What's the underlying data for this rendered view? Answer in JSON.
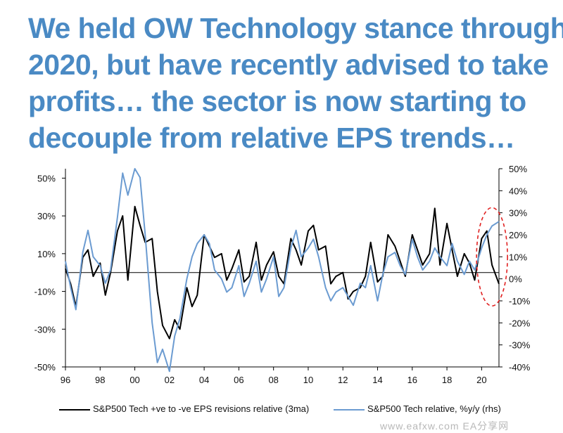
{
  "title_lines": [
    "We held OW Technology stance through",
    "2020, but have recently advised to take",
    "profits… the sector is now starting to",
    "decouple from relative EPS trends…"
  ],
  "watermark": "www.eafxw.com  EA分享网",
  "colors": {
    "title": "#4a8ac4",
    "series1": "#000000",
    "series2": "#6b9bd1",
    "annotation": "#e02020"
  },
  "chart_data": {
    "type": "line",
    "title": "",
    "x_ticks": [
      "96",
      "98",
      "00",
      "02",
      "04",
      "06",
      "08",
      "10",
      "12",
      "14",
      "16",
      "18",
      "20"
    ],
    "xlim": [
      1996,
      2021
    ],
    "y_left": {
      "ticks": [
        "50%",
        "30%",
        "10%",
        "-10%",
        "-30%",
        "-50%"
      ],
      "lim": [
        -50,
        55
      ]
    },
    "y_right": {
      "ticks": [
        "50%",
        "40%",
        "30%",
        "20%",
        "10%",
        "0%",
        "-10%",
        "-20%",
        "-30%",
        "-40%"
      ],
      "lim": [
        -40,
        50
      ]
    },
    "grid": false,
    "legend_position": "bottom",
    "annotation": "red dashed ellipse around 2020–2021",
    "series": [
      {
        "name": "S&P500 Tech +ve to -ve EPS revisions relative (3ma)",
        "axis": "left",
        "color": "#000000",
        "x": [
          1996.0,
          1996.3,
          1996.6,
          1997.0,
          1997.3,
          1997.6,
          1998.0,
          1998.3,
          1998.6,
          1999.0,
          1999.3,
          1999.6,
          2000.0,
          2000.3,
          2000.6,
          2001.0,
          2001.3,
          2001.6,
          2002.0,
          2002.3,
          2002.6,
          2003.0,
          2003.3,
          2003.6,
          2004.0,
          2004.3,
          2004.6,
          2005.0,
          2005.3,
          2005.6,
          2006.0,
          2006.3,
          2006.6,
          2007.0,
          2007.3,
          2007.6,
          2008.0,
          2008.3,
          2008.6,
          2009.0,
          2009.3,
          2009.6,
          2010.0,
          2010.3,
          2010.6,
          2011.0,
          2011.3,
          2011.6,
          2012.0,
          2012.3,
          2012.6,
          2013.0,
          2013.3,
          2013.6,
          2014.0,
          2014.3,
          2014.6,
          2015.0,
          2015.3,
          2015.6,
          2016.0,
          2016.3,
          2016.6,
          2017.0,
          2017.3,
          2017.6,
          2018.0,
          2018.3,
          2018.6,
          2019.0,
          2019.3,
          2019.6,
          2020.0,
          2020.3,
          2020.6,
          2021.0
        ],
        "y": [
          2,
          -6,
          -18,
          8,
          12,
          -2,
          5,
          -12,
          0,
          22,
          30,
          -4,
          35,
          25,
          16,
          18,
          -10,
          -28,
          -35,
          -25,
          -30,
          -8,
          -18,
          -12,
          20,
          14,
          8,
          10,
          -4,
          2,
          12,
          -5,
          -2,
          16,
          -4,
          4,
          11,
          -2,
          -6,
          18,
          12,
          4,
          22,
          25,
          12,
          14,
          -6,
          -2,
          0,
          -14,
          -10,
          -8,
          -2,
          16,
          -5,
          -2,
          20,
          14,
          6,
          -2,
          20,
          12,
          4,
          10,
          34,
          4,
          26,
          12,
          -2,
          10,
          5,
          -4,
          18,
          22,
          4,
          -6
        ]
      },
      {
        "name": "S&P500 Tech relative, %y/y (rhs)",
        "axis": "right",
        "color": "#6b9bd1",
        "x": [
          1996.0,
          1996.3,
          1996.6,
          1997.0,
          1997.3,
          1997.6,
          1998.0,
          1998.3,
          1998.6,
          1999.0,
          1999.3,
          1999.6,
          2000.0,
          2000.3,
          2000.6,
          2001.0,
          2001.3,
          2001.6,
          2002.0,
          2002.3,
          2002.6,
          2003.0,
          2003.3,
          2003.6,
          2004.0,
          2004.3,
          2004.6,
          2005.0,
          2005.3,
          2005.6,
          2006.0,
          2006.3,
          2006.6,
          2007.0,
          2007.3,
          2007.6,
          2008.0,
          2008.3,
          2008.6,
          2009.0,
          2009.3,
          2009.6,
          2010.0,
          2010.3,
          2010.6,
          2011.0,
          2011.3,
          2011.6,
          2012.0,
          2012.3,
          2012.6,
          2013.0,
          2013.3,
          2013.6,
          2014.0,
          2014.3,
          2014.6,
          2015.0,
          2015.3,
          2015.6,
          2016.0,
          2016.3,
          2016.6,
          2017.0,
          2017.3,
          2017.6,
          2018.0,
          2018.3,
          2018.6,
          2019.0,
          2019.3,
          2019.6,
          2020.0,
          2020.3,
          2020.6,
          2021.0
        ],
        "y": [
          8,
          -4,
          -14,
          12,
          22,
          10,
          6,
          -2,
          4,
          28,
          48,
          38,
          50,
          46,
          20,
          -20,
          -38,
          -32,
          -42,
          -26,
          -18,
          0,
          10,
          16,
          20,
          16,
          4,
          0,
          -6,
          -4,
          6,
          -8,
          -2,
          8,
          -6,
          0,
          10,
          -8,
          -4,
          14,
          22,
          10,
          14,
          18,
          10,
          -4,
          -10,
          -6,
          -4,
          -8,
          -12,
          -2,
          -4,
          6,
          -10,
          2,
          10,
          12,
          6,
          2,
          18,
          10,
          4,
          8,
          14,
          10,
          6,
          16,
          8,
          2,
          8,
          4,
          14,
          20,
          24,
          26
        ]
      }
    ]
  }
}
